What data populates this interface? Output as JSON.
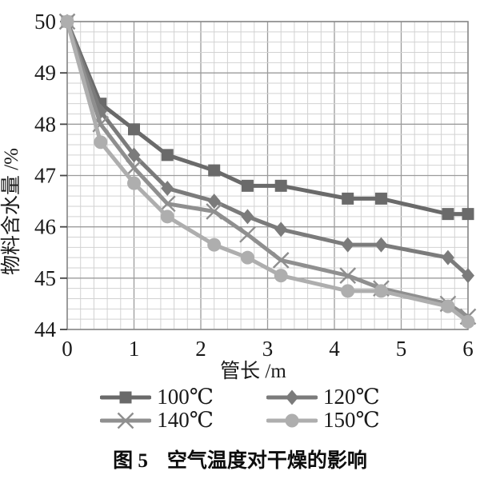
{
  "chart_data": {
    "type": "line",
    "title": "",
    "xlabel": "管长 /m",
    "ylabel": "物料含水量 /%",
    "xlim": [
      0,
      6
    ],
    "ylim": [
      44,
      50
    ],
    "x_ticks": [
      0,
      1,
      2,
      3,
      4,
      5,
      6
    ],
    "y_ticks": [
      44,
      45,
      46,
      47,
      48,
      49,
      50
    ],
    "minor_step": 0.2,
    "grid": true,
    "legend_position": "bottom",
    "x": [
      0,
      0.5,
      1,
      1.5,
      2.2,
      2.7,
      3.2,
      4.2,
      4.7,
      5.7,
      6
    ],
    "series": [
      {
        "name": "100℃",
        "marker": "square",
        "color": "#6a6a6a",
        "values": [
          50,
          48.4,
          47.9,
          47.4,
          47.1,
          46.8,
          46.8,
          46.55,
          46.55,
          46.25,
          46.25
        ]
      },
      {
        "name": "120℃",
        "marker": "diamond",
        "color": "#7b7b7b",
        "values": [
          50,
          48.25,
          47.4,
          46.75,
          46.5,
          46.2,
          45.95,
          45.65,
          45.65,
          45.4,
          45.05
        ]
      },
      {
        "name": "140℃",
        "marker": "x",
        "color": "#8f8f8f",
        "values": [
          50,
          48.0,
          47.15,
          46.45,
          46.3,
          45.85,
          45.35,
          45.05,
          44.8,
          44.5,
          44.25
        ]
      },
      {
        "name": "150℃",
        "marker": "circle",
        "color": "#aeaeae",
        "values": [
          50,
          47.65,
          46.85,
          46.2,
          45.65,
          45.4,
          45.05,
          44.75,
          44.75,
          44.45,
          44.15
        ]
      }
    ]
  },
  "styles": {
    "grid_minor_color": "#d2d2d2",
    "grid_major_color": "#9b9b9b",
    "axis_color": "#8a8a8a",
    "tick_color": "#444444",
    "text_color": "#1a1a1a"
  },
  "caption": {
    "prefix": "图 5",
    "text": "空气温度对干燥的影响"
  }
}
